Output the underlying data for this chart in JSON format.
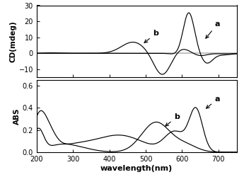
{
  "cd_xlim": [
    200,
    750
  ],
  "cd_ylim": [
    -15,
    30
  ],
  "cd_yticks": [
    -10,
    0,
    10,
    20,
    30
  ],
  "abs_xlim": [
    200,
    750
  ],
  "abs_ylim": [
    0.0,
    0.65
  ],
  "abs_yticks": [
    0.0,
    0.2,
    0.4,
    0.6
  ],
  "xlabel": "wavelength(nm)",
  "cd_ylabel": "CD(mdeg)",
  "abs_ylabel": "ABS",
  "xticks": [
    200,
    300,
    400,
    500,
    600,
    700
  ],
  "background_color": "#ffffff",
  "line_color": "#000000",
  "label_a": "a",
  "label_b": "b"
}
